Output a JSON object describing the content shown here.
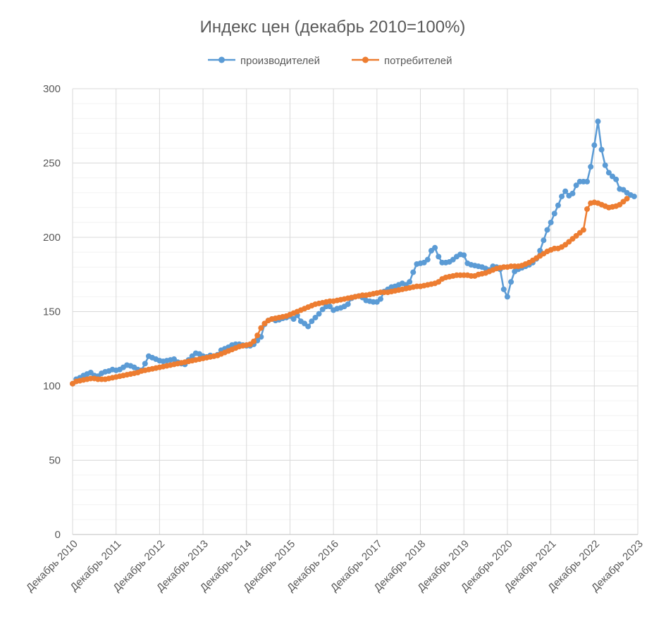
{
  "chart_data": {
    "type": "line",
    "title": "Индекс цен (декабрь 2010=100%)",
    "xlabel": "",
    "ylabel": "",
    "ylim": [
      0,
      300
    ],
    "yticks": [
      0,
      50,
      100,
      150,
      200,
      250,
      300
    ],
    "xticks": [
      "Декабрь 2010",
      "Декабрь 2011",
      "Декабрь 2012",
      "Декабрь 2013",
      "Декабрь 2014",
      "Декабрь 2015",
      "Декабрь 2016",
      "Декабрь 2017",
      "Декабрь 2018",
      "Декабрь 2019",
      "Декабрь 2020",
      "Декабрь 2021",
      "Декабрь 2022",
      "Декабрь 2023"
    ],
    "grid": true,
    "legend_position": "top",
    "series": [
      {
        "name": "производителей",
        "color": "#5B9BD5",
        "start": "2010-12",
        "values": [
          101.5,
          104.5,
          105.5,
          107,
          108,
          109,
          107,
          106.5,
          108.5,
          109.5,
          110,
          111,
          110.5,
          111,
          112.5,
          114,
          113.5,
          112.5,
          111,
          110.5,
          115,
          120,
          119,
          118,
          117,
          116.5,
          117,
          117.5,
          118,
          116,
          115,
          114.5,
          117.5,
          120,
          122,
          121.5,
          120,
          119.5,
          120.5,
          120,
          121,
          124,
          125,
          126,
          127.5,
          128,
          128,
          127.5,
          127,
          127,
          128,
          130.5,
          133,
          141.5,
          144,
          145,
          144,
          144.5,
          145.5,
          146,
          147,
          145,
          147.5,
          143.5,
          142,
          140,
          143.5,
          146,
          148.5,
          151.5,
          153.5,
          153.5,
          151,
          152,
          152.5,
          153.5,
          155,
          159,
          160,
          160.5,
          159.5,
          157.5,
          157,
          156.5,
          156.5,
          158.5,
          163.5,
          165,
          166.5,
          167,
          168,
          169,
          168,
          170,
          176.5,
          182,
          182.5,
          183,
          185,
          191,
          193,
          187,
          183,
          183,
          183.5,
          185,
          187,
          188.5,
          188,
          182.5,
          181.5,
          181,
          180.5,
          180,
          179,
          178,
          180.5,
          180,
          178.5,
          165,
          160,
          170,
          177,
          178.5,
          179.5,
          180.5,
          181.5,
          183,
          185.5,
          191,
          198,
          205,
          210,
          216,
          221.5,
          227.5,
          231,
          228,
          229.5,
          235,
          237.5,
          237.5,
          237.5,
          247.5,
          262,
          278,
          259,
          248.5,
          243.5,
          241,
          239,
          232.5,
          232,
          230,
          228.5,
          227.5
        ]
      },
      {
        "name": "потребителей",
        "color": "#ED7D31",
        "start": "2010-12",
        "values": [
          101.5,
          103,
          103.5,
          104,
          104.5,
          105,
          105,
          104.5,
          104.5,
          104.5,
          105,
          105.5,
          106,
          106.5,
          107,
          107.5,
          108,
          108.5,
          109,
          110,
          110.5,
          111,
          111.5,
          112,
          112.5,
          113,
          113.5,
          114,
          114.5,
          115,
          115.5,
          116,
          116.5,
          117,
          117.5,
          118,
          118.5,
          119,
          119.5,
          120,
          120.5,
          121.5,
          122.5,
          123.5,
          124.5,
          125.5,
          126.5,
          127,
          127.5,
          128,
          130,
          134,
          139,
          142,
          144,
          145,
          145.5,
          146,
          146.5,
          147,
          148,
          149,
          150,
          151,
          152,
          153,
          154,
          155,
          155.5,
          156,
          156.5,
          157,
          157,
          157.5,
          158,
          158.5,
          159,
          159.5,
          160,
          160.5,
          161,
          161,
          161.5,
          162,
          162.5,
          163,
          163,
          163,
          163.5,
          164,
          164.5,
          165,
          165.5,
          166,
          166.5,
          167,
          167,
          167.5,
          168,
          168.5,
          169,
          170,
          172,
          173,
          173.5,
          174,
          174.5,
          174.5,
          174.5,
          174.5,
          174,
          174,
          175,
          175.5,
          176,
          177,
          178,
          179,
          179.5,
          180,
          180,
          180.5,
          180.5,
          180.5,
          181,
          182,
          183,
          184.5,
          186,
          187.5,
          189,
          190.5,
          191.5,
          192.5,
          192.5,
          193.5,
          195,
          197,
          199,
          201,
          203,
          205,
          219,
          223,
          223.5,
          223,
          222,
          221,
          220,
          220.5,
          221,
          222,
          224,
          226
        ]
      }
    ]
  }
}
